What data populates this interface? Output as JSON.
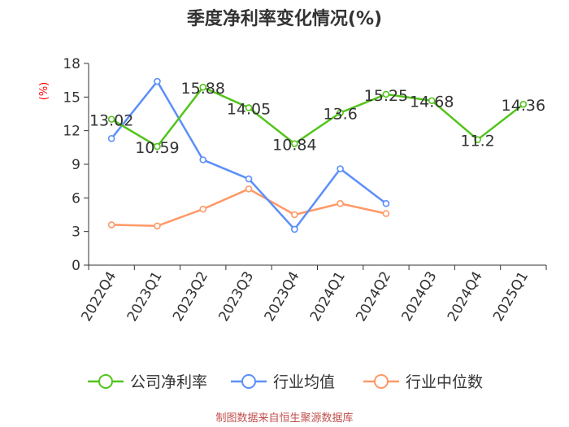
{
  "chart_data": {
    "type": "line",
    "title": "季度净利率变化情况(%)",
    "ylabel": "(%)",
    "ylim": [
      0,
      18
    ],
    "yticks": [
      0,
      3,
      6,
      9,
      12,
      15,
      18
    ],
    "categories": [
      "2022Q4",
      "2023Q1",
      "2023Q2",
      "2023Q3",
      "2023Q4",
      "2024Q1",
      "2024Q2",
      "2024Q3",
      "2024Q4",
      "2025Q1"
    ],
    "series": [
      {
        "name": "公司净利率",
        "color": "#52c41a",
        "values": [
          13.02,
          10.59,
          15.88,
          14.05,
          10.84,
          13.6,
          15.25,
          14.68,
          11.2,
          14.36
        ],
        "data_labels": [
          "13.02",
          "10.59",
          "15.88",
          "14.05",
          "10.84",
          "13.6",
          "15.25",
          "14.68",
          "11.2",
          "14.36"
        ]
      },
      {
        "name": "行业均值",
        "color": "#5b8ff9",
        "values": [
          11.3,
          16.4,
          9.4,
          7.7,
          3.2,
          8.6,
          5.5,
          null,
          null,
          null
        ]
      },
      {
        "name": "行业中位数",
        "color": "#ff9866",
        "values": [
          3.6,
          3.5,
          5.0,
          6.8,
          4.5,
          5.5,
          4.6,
          null,
          null,
          null
        ]
      }
    ],
    "grid": false,
    "legend_position": "bottom"
  },
  "source": "制图数据来自恒生聚源数据库"
}
